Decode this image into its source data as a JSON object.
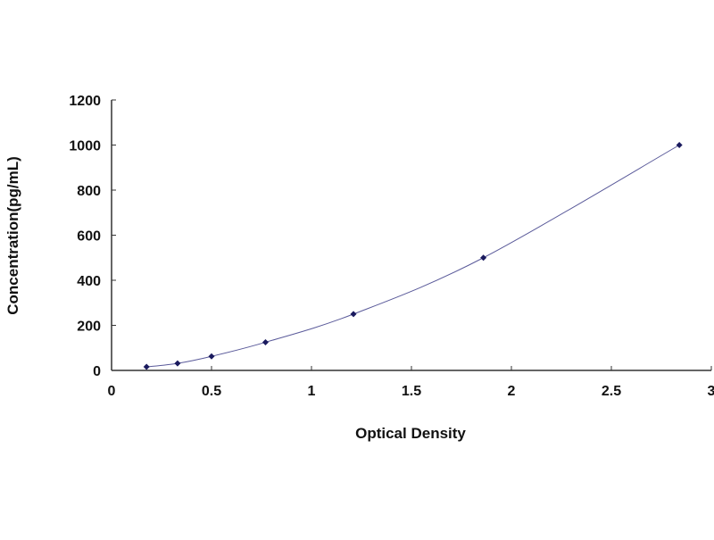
{
  "chart_data": {
    "type": "scatter",
    "title": "",
    "xlabel": "Optical Density",
    "ylabel": "Concentration(pg/mL)",
    "xlim": [
      0,
      3
    ],
    "ylim": [
      0,
      1200
    ],
    "xticks": [
      "0",
      "0.5",
      "1",
      "1.5",
      "2",
      "2.5",
      "3"
    ],
    "yticks": [
      "0",
      "200",
      "400",
      "600",
      "800",
      "1000",
      "1200"
    ],
    "grid": false,
    "fitted_curve": true,
    "colors": {
      "points": "#1a1a5e",
      "curve": "#5a5a9a",
      "axis": "#333333"
    },
    "points": [
      {
        "x": 0.175,
        "y": 15.6
      },
      {
        "x": 0.33,
        "y": 31.25
      },
      {
        "x": 0.5,
        "y": 62.5
      },
      {
        "x": 0.77,
        "y": 125
      },
      {
        "x": 1.21,
        "y": 250
      },
      {
        "x": 1.86,
        "y": 500
      },
      {
        "x": 2.84,
        "y": 1000
      }
    ]
  }
}
